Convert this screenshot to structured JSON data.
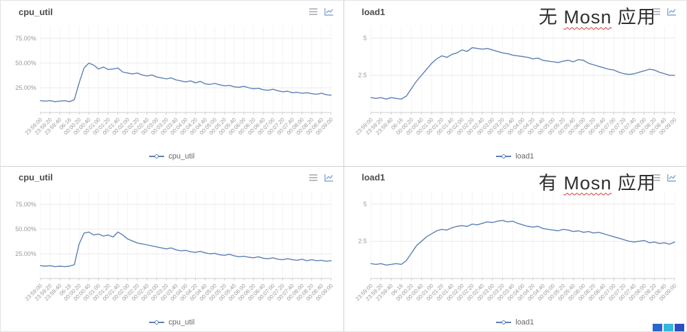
{
  "x_labels": [
    "23:59:00",
    "23:59:20",
    "23:59:40",
    "06-16",
    "00:00:20",
    "00:00:40",
    "00:01:00",
    "00:01:20",
    "00:01:40",
    "00:02:00",
    "00:02:20",
    "00:02:40",
    "00:03:00",
    "00:03:20",
    "00:03:40",
    "00:04:00",
    "00:04:20",
    "00:04:40",
    "00:05:00",
    "00:05:20",
    "00:05:40",
    "00:06:00",
    "00:06:20",
    "00:06:40",
    "00:07:00",
    "00:07:20",
    "00:07:40",
    "00:08:00",
    "00:08:20",
    "00:08:40",
    "00:09:00"
  ],
  "chart_data": [
    {
      "type": "line",
      "title": "cpu_util",
      "legend": "cpu_util",
      "ylabel": "",
      "xlabel": "",
      "grid": true,
      "legend_position": "bottom",
      "yticks": [
        25,
        50,
        75
      ],
      "ytick_labels": [
        "25.00%",
        "50.00%",
        "75.00%"
      ],
      "ylim": [
        0,
        87.5
      ],
      "values": [
        12,
        11.5,
        12,
        11,
        11.5,
        12,
        11,
        13,
        30,
        45,
        50,
        48,
        44,
        46,
        43.5,
        44,
        45,
        41,
        40,
        39,
        40,
        38,
        37,
        38,
        36,
        35,
        34,
        35,
        33,
        32,
        31,
        32,
        30,
        31.5,
        29,
        28.5,
        29.5,
        28,
        27,
        27.5,
        26,
        25.5,
        26.5,
        25,
        24,
        24.5,
        23,
        22.5,
        23.5,
        22,
        21,
        21.5,
        20,
        20.5,
        19.5,
        20,
        19,
        18.5,
        19.5,
        18,
        17.5
      ]
    },
    {
      "type": "line",
      "title": "load1",
      "legend": "load1",
      "ylabel": "",
      "xlabel": "",
      "grid": true,
      "legend_position": "bottom",
      "yticks": [
        2.5,
        5
      ],
      "ytick_labels": [
        "2.5",
        "5"
      ],
      "ylim": [
        0,
        5.8
      ],
      "annotation": {
        "prefix": "无 ",
        "highlight": "Mosn",
        "suffix": " 应用"
      },
      "values": [
        1,
        0.95,
        1,
        0.9,
        1,
        0.95,
        0.9,
        1.1,
        1.6,
        2.1,
        2.5,
        2.9,
        3.3,
        3.6,
        3.8,
        3.7,
        3.9,
        4,
        4.2,
        4.1,
        4.35,
        4.3,
        4.25,
        4.3,
        4.2,
        4.1,
        4,
        3.95,
        3.85,
        3.8,
        3.75,
        3.7,
        3.6,
        3.65,
        3.5,
        3.45,
        3.4,
        3.35,
        3.45,
        3.5,
        3.4,
        3.55,
        3.5,
        3.3,
        3.2,
        3.1,
        3,
        2.9,
        2.85,
        2.7,
        2.6,
        2.55,
        2.6,
        2.7,
        2.8,
        2.9,
        2.85,
        2.7,
        2.6,
        2.5,
        2.5
      ]
    },
    {
      "type": "line",
      "title": "cpu_util",
      "legend": "cpu_util",
      "ylabel": "",
      "xlabel": "",
      "grid": true,
      "legend_position": "bottom",
      "yticks": [
        25,
        50,
        75
      ],
      "ytick_labels": [
        "25.00%",
        "50.00%",
        "75.00%"
      ],
      "ylim": [
        0,
        87.5
      ],
      "values": [
        13,
        12.5,
        13,
        12,
        12.5,
        12,
        12.5,
        14,
        35,
        46,
        47,
        44,
        45,
        43,
        44,
        42,
        47,
        44,
        40,
        38,
        36,
        35,
        34,
        33,
        32,
        31,
        30,
        31,
        29,
        28,
        28.5,
        27,
        26.5,
        27.5,
        26,
        25,
        25.5,
        24,
        23.5,
        24.5,
        23,
        22,
        22.5,
        21.5,
        21,
        22,
        20.5,
        20,
        21,
        19.5,
        19,
        20,
        19,
        18.5,
        19.5,
        18,
        19,
        18,
        18.5,
        17.5,
        18
      ]
    },
    {
      "type": "line",
      "title": "load1",
      "legend": "load1",
      "ylabel": "",
      "xlabel": "",
      "grid": true,
      "legend_position": "bottom",
      "yticks": [
        2.5,
        5
      ],
      "ytick_labels": [
        "2.5",
        "5"
      ],
      "ylim": [
        0,
        5.8
      ],
      "annotation": {
        "prefix": "有 ",
        "highlight": "Mosn",
        "suffix": " 应用"
      },
      "values": [
        1,
        0.95,
        1,
        0.9,
        0.95,
        1,
        0.95,
        1.2,
        1.7,
        2.2,
        2.5,
        2.8,
        3,
        3.2,
        3.3,
        3.25,
        3.4,
        3.5,
        3.55,
        3.5,
        3.65,
        3.6,
        3.7,
        3.8,
        3.75,
        3.85,
        3.9,
        3.8,
        3.85,
        3.7,
        3.6,
        3.5,
        3.45,
        3.5,
        3.35,
        3.3,
        3.25,
        3.2,
        3.3,
        3.25,
        3.15,
        3.2,
        3.1,
        3.15,
        3.05,
        3.1,
        3,
        2.9,
        2.8,
        2.7,
        2.6,
        2.5,
        2.45,
        2.5,
        2.55,
        2.4,
        2.45,
        2.35,
        2.4,
        2.3,
        2.45
      ]
    }
  ],
  "toolbox_icons": [
    "data-view",
    "line-chart"
  ],
  "colors": {
    "line": "#5a7fb5",
    "grid": "#e8e8e8",
    "grid_vertical": "#f4f4f4",
    "axis": "#cccccc",
    "tick_text": "#999999",
    "title_text": "#4c4c4c",
    "annotation_text": "#2f2f2f",
    "squiggle": "#e03131",
    "watermark": [
      "#2867ce",
      "#35b7d9",
      "#2b4fc0"
    ]
  }
}
